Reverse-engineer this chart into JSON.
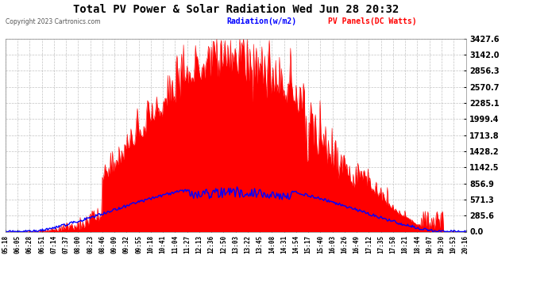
{
  "title": "Total PV Power & Solar Radiation Wed Jun 28 20:32",
  "copyright": "Copyright 2023 Cartronics.com",
  "legend_radiation": "Radiation(w/m2)",
  "legend_pv": "PV Panels(DC Watts)",
  "bg_color": "#ffffff",
  "plot_bg_color": "#ffffff",
  "grid_color": "#aaaaaa",
  "title_color": "#000000",
  "radiation_color": "#0000ff",
  "pv_color": "#ff0000",
  "ylabel_right_color": "#000000",
  "yticks": [
    0.0,
    285.6,
    571.3,
    856.9,
    1142.5,
    1428.2,
    1713.8,
    1999.4,
    2285.1,
    2570.7,
    2856.3,
    3142.0,
    3427.6
  ],
  "xtick_labels": [
    "05:18",
    "06:05",
    "06:28",
    "06:51",
    "07:14",
    "07:37",
    "08:00",
    "08:23",
    "08:46",
    "09:09",
    "09:32",
    "09:55",
    "10:18",
    "10:41",
    "11:04",
    "11:27",
    "12:13",
    "12:36",
    "12:50",
    "13:03",
    "13:22",
    "13:45",
    "14:08",
    "14:31",
    "14:54",
    "15:17",
    "15:40",
    "16:03",
    "16:26",
    "16:49",
    "17:12",
    "17:35",
    "17:58",
    "18:21",
    "18:44",
    "19:07",
    "19:30",
    "19:53",
    "20:16"
  ],
  "ymax": 3427.6,
  "ymin": 0.0
}
